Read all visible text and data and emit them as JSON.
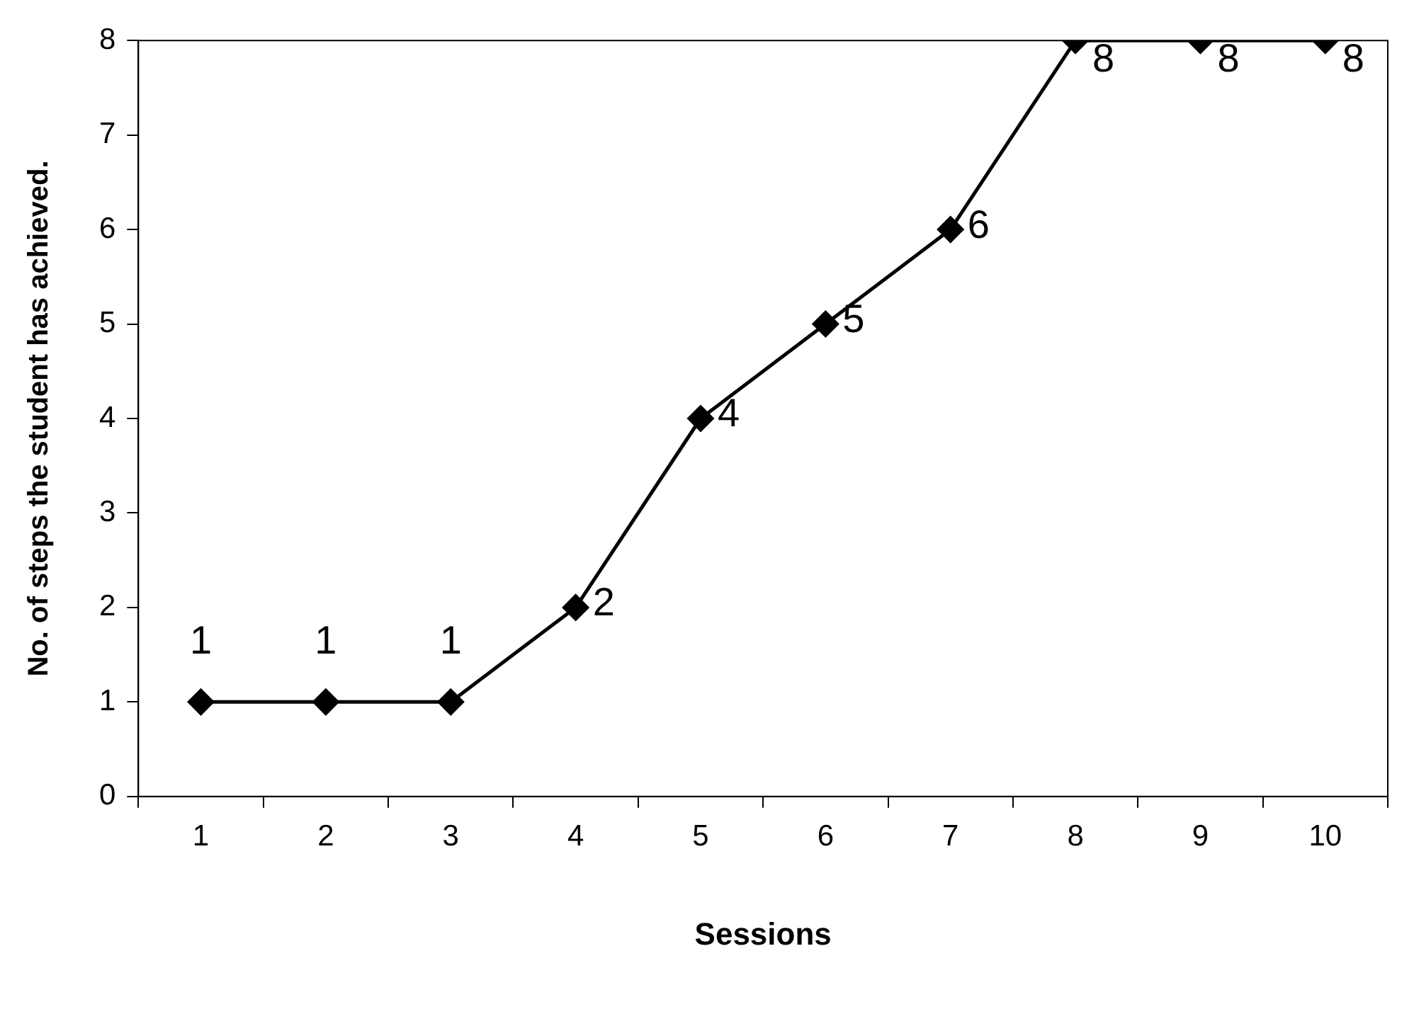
{
  "chart_data": {
    "type": "line",
    "xlabel": "Sessions",
    "ylabel": "No. of steps the student has achieved.",
    "categories": [
      "1",
      "2",
      "3",
      "4",
      "5",
      "6",
      "7",
      "8",
      "9",
      "10"
    ],
    "series": [
      {
        "color": "#000000",
        "values": [
          1,
          1,
          1,
          2,
          4,
          5,
          6,
          8,
          8,
          8
        ]
      }
    ],
    "ylim": [
      0,
      8
    ],
    "yticks": [
      0,
      1,
      2,
      3,
      4,
      5,
      6,
      7,
      8
    ],
    "data_labels": true,
    "marker": "diamond",
    "line_style": "solid",
    "grid": false,
    "legend": false
  }
}
